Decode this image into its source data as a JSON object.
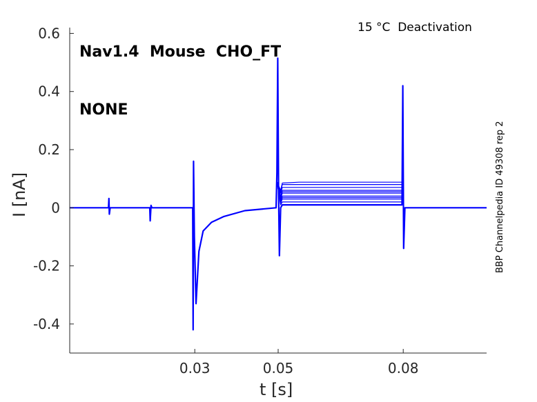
{
  "title": {
    "line1": "Nav1.4  Mouse  CHO_FT",
    "line2": "NONE"
  },
  "condition_label": "15 °C  Deactivation",
  "side_label": "BBP Channelpedia ID 49308 rep 2",
  "chart_data": {
    "type": "line",
    "xlabel": "t [s]",
    "ylabel": "I [nA]",
    "xlim": [
      0.0,
      0.1
    ],
    "ylim": [
      -0.5,
      0.62
    ],
    "x_ticks": [
      {
        "value": 0.03,
        "label": "0.03"
      },
      {
        "value": 0.05,
        "label": "0.05"
      },
      {
        "value": 0.08,
        "label": "0.08"
      }
    ],
    "y_ticks": [
      {
        "value": 0.6,
        "label": "0.6"
      },
      {
        "value": 0.4,
        "label": "0.4"
      },
      {
        "value": 0.2,
        "label": "0.2"
      },
      {
        "value": 0,
        "label": "0"
      },
      {
        "value": -0.2,
        "label": "-0.2"
      },
      {
        "value": -0.4,
        "label": "-0.4"
      }
    ],
    "grid": false,
    "line_color": "#0000ff",
    "series_count": 11,
    "series": [
      {
        "points": [
          [
            0.0,
            0.0
          ],
          [
            0.0093,
            0.0
          ],
          [
            0.0094,
            0.032
          ],
          [
            0.0095,
            -0.022
          ],
          [
            0.0097,
            0.0
          ],
          [
            0.0192,
            0.0
          ],
          [
            0.0193,
            -0.045
          ],
          [
            0.0195,
            0.008
          ],
          [
            0.0197,
            0.0
          ],
          [
            0.0295,
            0.0
          ],
          [
            0.0296,
            -0.42
          ],
          [
            0.0297,
            0.16
          ],
          [
            0.0299,
            -0.1
          ],
          [
            0.0303,
            -0.33
          ],
          [
            0.031,
            -0.15
          ],
          [
            0.032,
            -0.08
          ],
          [
            0.034,
            -0.05
          ],
          [
            0.037,
            -0.03
          ],
          [
            0.042,
            -0.01
          ],
          [
            0.0495,
            0.0
          ],
          [
            0.0497,
            0.12
          ],
          [
            0.0499,
            0.515
          ],
          [
            0.0501,
            0.05
          ],
          [
            0.0503,
            -0.165
          ],
          [
            0.0506,
            0.0
          ],
          [
            0.051,
            0.01
          ],
          [
            0.055,
            0.01
          ],
          [
            0.06,
            0.01
          ],
          [
            0.07,
            0.01
          ],
          [
            0.0797,
            0.01
          ],
          [
            0.0799,
            0.42
          ],
          [
            0.0801,
            -0.14
          ],
          [
            0.0804,
            0.0
          ],
          [
            0.1,
            0.0
          ]
        ]
      },
      {
        "points": [
          [
            0.0497,
            0.09
          ],
          [
            0.0506,
            0.01
          ],
          [
            0.051,
            0.02
          ],
          [
            0.055,
            0.02
          ],
          [
            0.06,
            0.02
          ],
          [
            0.07,
            0.02
          ],
          [
            0.0797,
            0.02
          ]
        ]
      },
      {
        "points": [
          [
            0.0497,
            0.09
          ],
          [
            0.0506,
            0.015
          ],
          [
            0.051,
            0.03
          ],
          [
            0.055,
            0.03
          ],
          [
            0.06,
            0.03
          ],
          [
            0.07,
            0.03
          ],
          [
            0.0797,
            0.03
          ]
        ]
      },
      {
        "points": [
          [
            0.0497,
            0.09
          ],
          [
            0.0506,
            0.02
          ],
          [
            0.051,
            0.035
          ],
          [
            0.055,
            0.035
          ],
          [
            0.06,
            0.035
          ],
          [
            0.07,
            0.035
          ],
          [
            0.0797,
            0.035
          ]
        ]
      },
      {
        "points": [
          [
            0.0497,
            0.09
          ],
          [
            0.0506,
            0.025
          ],
          [
            0.051,
            0.04
          ],
          [
            0.055,
            0.04
          ],
          [
            0.06,
            0.04
          ],
          [
            0.07,
            0.04
          ],
          [
            0.0797,
            0.04
          ]
        ]
      },
      {
        "points": [
          [
            0.0497,
            0.09
          ],
          [
            0.0506,
            0.03
          ],
          [
            0.051,
            0.05
          ],
          [
            0.055,
            0.05
          ],
          [
            0.06,
            0.05
          ],
          [
            0.07,
            0.05
          ],
          [
            0.0797,
            0.05
          ]
        ]
      },
      {
        "points": [
          [
            0.0497,
            0.09
          ],
          [
            0.0506,
            0.035
          ],
          [
            0.051,
            0.055
          ],
          [
            0.055,
            0.055
          ],
          [
            0.06,
            0.055
          ],
          [
            0.07,
            0.055
          ],
          [
            0.0797,
            0.055
          ]
        ]
      },
      {
        "points": [
          [
            0.0497,
            0.09
          ],
          [
            0.0506,
            0.04
          ],
          [
            0.051,
            0.06
          ],
          [
            0.055,
            0.06
          ],
          [
            0.06,
            0.06
          ],
          [
            0.07,
            0.06
          ],
          [
            0.0797,
            0.06
          ]
        ]
      },
      {
        "points": [
          [
            0.0497,
            0.09
          ],
          [
            0.0506,
            0.05
          ],
          [
            0.051,
            0.07
          ],
          [
            0.055,
            0.07
          ],
          [
            0.06,
            0.07
          ],
          [
            0.07,
            0.07
          ],
          [
            0.0797,
            0.07
          ]
        ]
      },
      {
        "points": [
          [
            0.0497,
            0.09
          ],
          [
            0.0506,
            0.055
          ],
          [
            0.051,
            0.08
          ],
          [
            0.055,
            0.08
          ],
          [
            0.06,
            0.08
          ],
          [
            0.07,
            0.08
          ],
          [
            0.0797,
            0.08
          ]
        ]
      },
      {
        "points": [
          [
            0.0497,
            0.09
          ],
          [
            0.0506,
            0.06
          ],
          [
            0.051,
            0.085
          ],
          [
            0.055,
            0.088
          ],
          [
            0.06,
            0.088
          ],
          [
            0.07,
            0.088
          ],
          [
            0.0797,
            0.088
          ]
        ]
      }
    ]
  }
}
